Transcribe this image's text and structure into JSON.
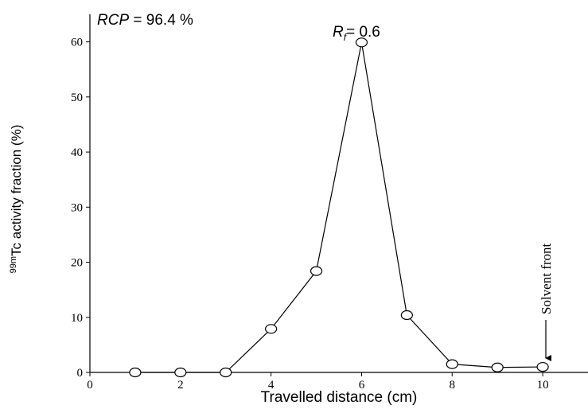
{
  "chart_data": {
    "type": "line",
    "x_label": "Travelled distance (cm)",
    "y_label": [
      "99m",
      "Tc activity fraction (%)"
    ],
    "rcp_label": [
      "RCP",
      "= 96.4 %"
    ],
    "rf_label": [
      "R",
      "f",
      "= 0.6"
    ],
    "solvent_front_label": "Solvent front",
    "x": [
      1,
      2,
      3,
      4,
      5,
      6,
      7,
      8,
      9,
      10
    ],
    "series": [
      {
        "color": "#000000",
        "values": [
          0,
          0,
          0,
          7.9,
          18.4,
          59.9,
          10.4,
          1.5,
          0.9,
          1.0
        ]
      }
    ],
    "xlim": [
      0,
      11
    ],
    "xticks": [
      0,
      2,
      4,
      6,
      8,
      10
    ],
    "ylim": [
      0,
      65
    ],
    "yticks": [
      0,
      10,
      20,
      30,
      40,
      50,
      60
    ]
  }
}
